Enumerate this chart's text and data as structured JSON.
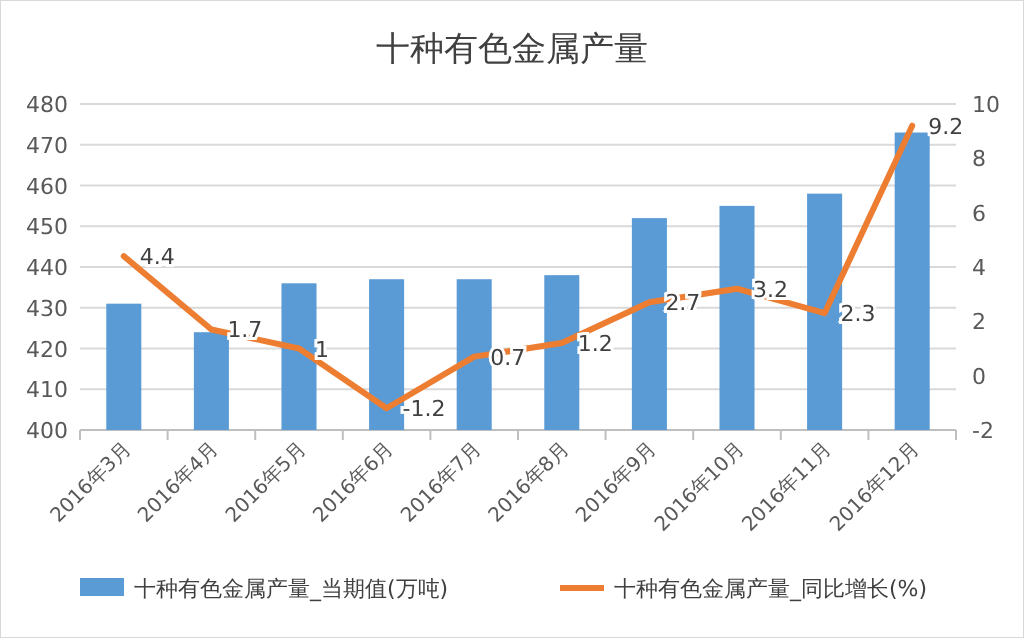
{
  "chart_data": {
    "type": "bar",
    "title": "十种有色金属产量",
    "categories": [
      "2016年3月",
      "2016年4月",
      "2016年5月",
      "2016年6月",
      "2016年7月",
      "2016年8月",
      "2016年9月",
      "2016年10月",
      "2016年11月",
      "2016年12月"
    ],
    "series": [
      {
        "name": "十种有色金属产量_当期值(万吨)",
        "color": "#5b9bd5",
        "values": [
          431,
          424,
          436,
          437,
          437,
          438,
          452,
          455,
          458,
          473
        ]
      },
      {
        "name": "十种有色金属产量_同比增长(%)",
        "color": "#ed7d31",
        "type": "line",
        "axis": "y2",
        "values": [
          4.4,
          1.7,
          1,
          -1.2,
          0.7,
          1.2,
          2.7,
          3.2,
          2.3,
          9.2
        ],
        "value_labels": [
          "4.4",
          "1.7",
          "1",
          "-1.2",
          "0.7",
          "1.2",
          "2.7",
          "3.2",
          "2.3",
          "9.2"
        ]
      }
    ],
    "ylim": [
      400,
      480
    ],
    "yticks": [
      400,
      410,
      420,
      430,
      440,
      450,
      460,
      470,
      480
    ],
    "y2lim": [
      -2,
      10
    ],
    "y2ticks": [
      -2,
      0,
      2,
      4,
      6,
      8,
      10
    ],
    "grid": "y",
    "legend": "bottom"
  }
}
